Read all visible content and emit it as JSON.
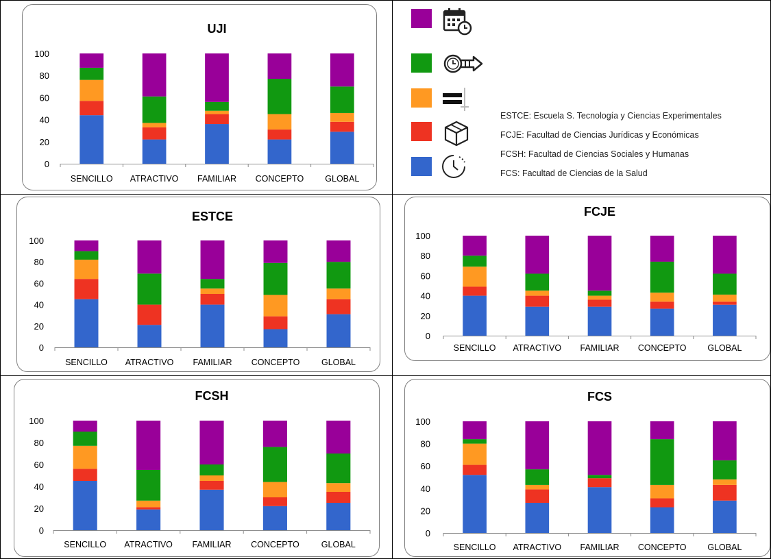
{
  "colors": {
    "blue": "#3366cc",
    "red": "#ee3322",
    "orange": "#ff9922",
    "green": "#119911",
    "purple": "#990099"
  },
  "legend": {
    "items": [
      {
        "color": "#990099",
        "icon": "calendar-clock-icon"
      },
      {
        "color": "#119911",
        "icon": "clock-arrow-icon"
      },
      {
        "color": "#ff9922",
        "icon": "equals-bars-icon"
      },
      {
        "color": "#ee3322",
        "icon": "box-icon"
      },
      {
        "color": "#3366cc",
        "icon": "timer-icon"
      }
    ],
    "abbreviations": [
      "ESTCE: Escuela S. Tecnología y Ciencias Experimentales",
      "FCJE: Facultad de Ciencias Jurídicas y Económicas",
      "FCSH: Facultad de Ciencias Sociales y Humanas",
      "FCS: Facultad de Ciencias de la Salud"
    ]
  },
  "chart_data": [
    {
      "type": "bar",
      "stacked": true,
      "title": "UJI",
      "categories": [
        "SENCILLO",
        "ATRACTIVO",
        "FAMILIAR",
        "CONCEPTO",
        "GLOBAL"
      ],
      "ylim": [
        0,
        100
      ],
      "yticks": [
        0,
        20,
        40,
        60,
        80,
        100
      ],
      "series": [
        {
          "color": "#3366cc",
          "values": [
            44,
            22,
            36,
            22,
            29
          ]
        },
        {
          "color": "#ee3322",
          "values": [
            13,
            11,
            9,
            9,
            9
          ]
        },
        {
          "color": "#ff9922",
          "values": [
            19,
            4,
            3,
            14,
            8
          ]
        },
        {
          "color": "#119911",
          "values": [
            11,
            24,
            8,
            32,
            24
          ]
        },
        {
          "color": "#990099",
          "values": [
            13,
            39,
            44,
            23,
            30
          ]
        }
      ]
    },
    {
      "type": "bar",
      "stacked": true,
      "title": "ESTCE",
      "categories": [
        "SENCILLO",
        "ATRACTIVO",
        "FAMILIAR",
        "CONCEPTO",
        "GLOBAL"
      ],
      "ylim": [
        0,
        100
      ],
      "yticks": [
        0,
        20,
        40,
        60,
        80,
        100
      ],
      "series": [
        {
          "color": "#3366cc",
          "values": [
            45,
            21,
            40,
            17,
            31
          ]
        },
        {
          "color": "#ee3322",
          "values": [
            19,
            19,
            10,
            12,
            14
          ]
        },
        {
          "color": "#ff9922",
          "values": [
            18,
            0,
            5,
            20,
            10
          ]
        },
        {
          "color": "#119911",
          "values": [
            8,
            29,
            9,
            30,
            25
          ]
        },
        {
          "color": "#990099",
          "values": [
            10,
            31,
            36,
            21,
            20
          ]
        }
      ]
    },
    {
      "type": "bar",
      "stacked": true,
      "title": "FCJE",
      "categories": [
        "SENCILLO",
        "ATRACTIVO",
        "FAMILIAR",
        "CONCEPTO",
        "GLOBAL"
      ],
      "ylim": [
        0,
        100
      ],
      "yticks": [
        0,
        20,
        40,
        60,
        80,
        100
      ],
      "series": [
        {
          "color": "#3366cc",
          "values": [
            40,
            29,
            29,
            27,
            31
          ]
        },
        {
          "color": "#ee3322",
          "values": [
            9,
            11,
            7,
            7,
            3
          ]
        },
        {
          "color": "#ff9922",
          "values": [
            20,
            5,
            4,
            9,
            7
          ]
        },
        {
          "color": "#119911",
          "values": [
            11,
            17,
            5,
            31,
            21
          ]
        },
        {
          "color": "#990099",
          "values": [
            20,
            38,
            55,
            26,
            38
          ]
        }
      ]
    },
    {
      "type": "bar",
      "stacked": true,
      "title": "FCSH",
      "categories": [
        "SENCILLO",
        "ATRACTIVO",
        "FAMILIAR",
        "CONCEPTO",
        "GLOBAL"
      ],
      "ylim": [
        0,
        100
      ],
      "yticks": [
        0,
        20,
        40,
        60,
        80,
        100
      ],
      "series": [
        {
          "color": "#3366cc",
          "values": [
            45,
            19,
            37,
            22,
            25
          ]
        },
        {
          "color": "#ee3322",
          "values": [
            11,
            2,
            8,
            8,
            10
          ]
        },
        {
          "color": "#ff9922",
          "values": [
            21,
            6,
            5,
            14,
            8
          ]
        },
        {
          "color": "#119911",
          "values": [
            13,
            28,
            10,
            32,
            27
          ]
        },
        {
          "color": "#990099",
          "values": [
            10,
            45,
            40,
            24,
            30
          ]
        }
      ]
    },
    {
      "type": "bar",
      "stacked": true,
      "title": "FCS",
      "categories": [
        "SENCILLO",
        "ATRACTIVO",
        "FAMILIAR",
        "CONCEPTO",
        "GLOBAL"
      ],
      "ylim": [
        0,
        100
      ],
      "yticks": [
        0,
        20,
        40,
        60,
        80,
        100
      ],
      "series": [
        {
          "color": "#3366cc",
          "values": [
            52,
            27,
            41,
            23,
            29
          ]
        },
        {
          "color": "#ee3322",
          "values": [
            9,
            12,
            8,
            8,
            14
          ]
        },
        {
          "color": "#ff9922",
          "values": [
            19,
            4,
            0,
            12,
            5
          ]
        },
        {
          "color": "#119911",
          "values": [
            4,
            14,
            3,
            41,
            17
          ]
        },
        {
          "color": "#990099",
          "values": [
            16,
            43,
            48,
            16,
            35
          ]
        }
      ]
    }
  ]
}
